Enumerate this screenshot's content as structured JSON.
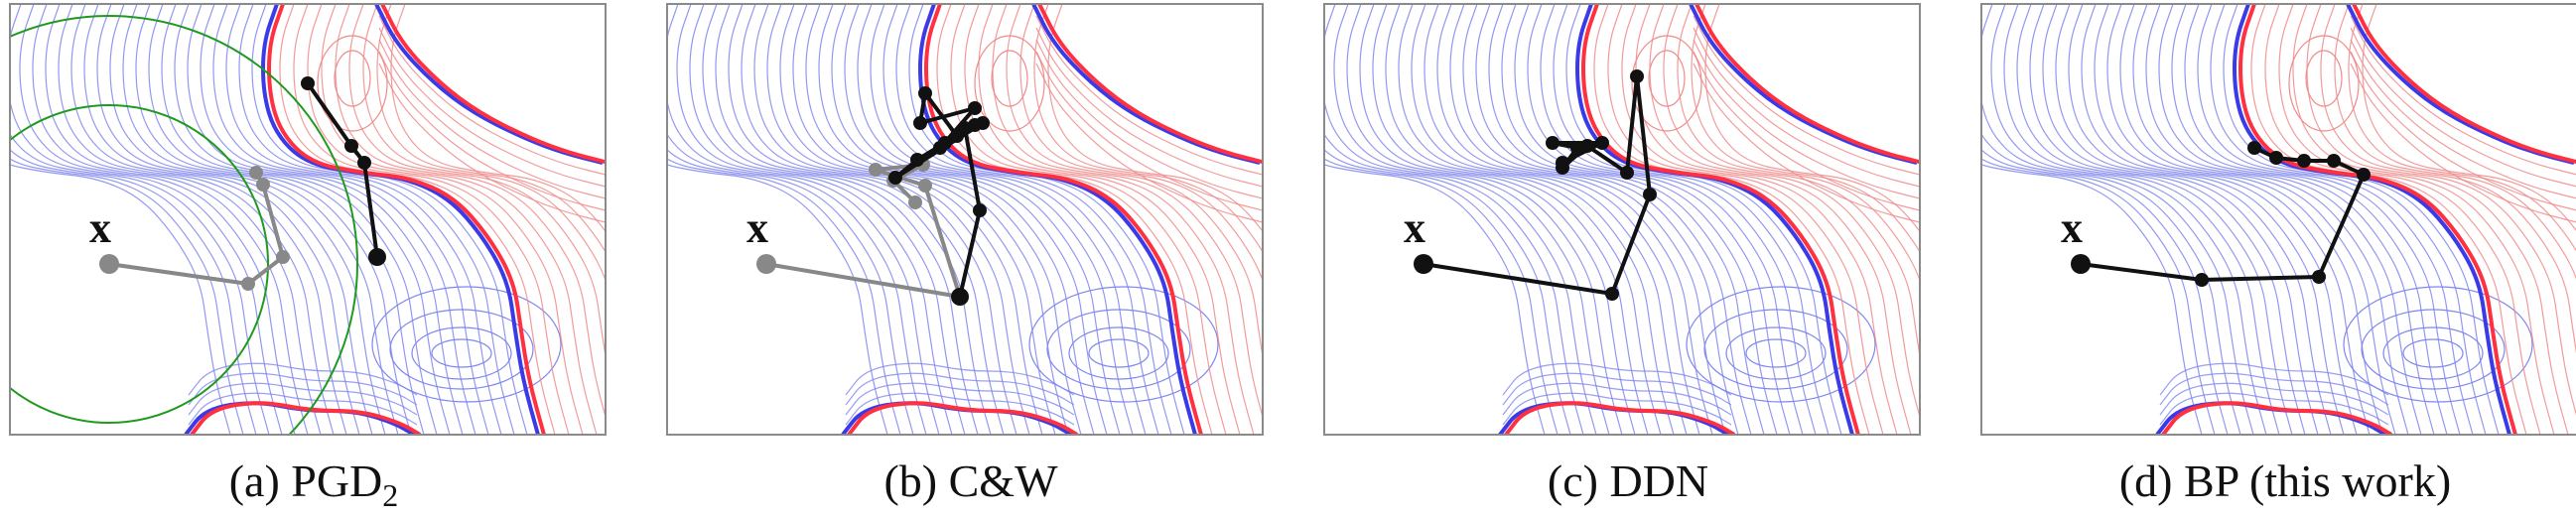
{
  "panels": [
    {
      "id": "a",
      "caption": "(a) PGD",
      "caption_sub": "2",
      "point_label": "x",
      "show_ball": true,
      "gray_path": [
        [
          100,
          262
        ],
        [
          240,
          282
        ],
        [
          275,
          255
        ],
        [
          255,
          182
        ],
        [
          248,
          170
        ]
      ],
      "black_path": [
        [
          370,
          255
        ],
        [
          357,
          160
        ],
        [
          344,
          143
        ],
        [
          300,
          80
        ]
      ]
    },
    {
      "id": "b",
      "caption": "(b) C&W",
      "caption_sub": "",
      "point_label": "x",
      "show_ball": false,
      "gray_path": [
        [
          100,
          262
        ],
        [
          295,
          295
        ],
        [
          260,
          183
        ],
        [
          210,
          167
        ],
        [
          258,
          162
        ],
        [
          228,
          178
        ],
        [
          250,
          200
        ]
      ],
      "black_path": [
        [
          295,
          295
        ],
        [
          315,
          208
        ],
        [
          300,
          125
        ],
        [
          275,
          145
        ],
        [
          310,
          105
        ],
        [
          255,
          120
        ],
        [
          260,
          90
        ],
        [
          292,
          133
        ],
        [
          318,
          120
        ],
        [
          230,
          175
        ],
        [
          252,
          157
        ],
        [
          280,
          140
        ],
        [
          310,
          122
        ]
      ]
    },
    {
      "id": "c",
      "caption": "(c) DDN",
      "caption_sub": "",
      "point_label": "x",
      "show_ball": false,
      "gray_path": [],
      "black_path": [
        [
          100,
          262
        ],
        [
          290,
          292
        ],
        [
          328,
          192
        ],
        [
          315,
          73
        ],
        [
          305,
          170
        ],
        [
          265,
          143
        ],
        [
          240,
          165
        ],
        [
          255,
          145
        ],
        [
          230,
          140
        ],
        [
          280,
          140
        ],
        [
          240,
          160
        ]
      ]
    },
    {
      "id": "d",
      "caption": "(d) BP (this work)",
      "caption_sub": "",
      "point_label": "x",
      "show_ball": false,
      "gray_path": [],
      "black_path": [
        [
          100,
          262
        ],
        [
          222,
          278
        ],
        [
          340,
          275
        ],
        [
          385,
          172
        ],
        [
          355,
          158
        ],
        [
          325,
          158
        ],
        [
          297,
          155
        ],
        [
          275,
          145
        ]
      ]
    }
  ],
  "colors": {
    "blue_contour": "#7f86f0",
    "red_contour": "#f08a8a",
    "boundary_red": "#ff3040",
    "boundary_blue": "#3a3ae8",
    "black_path": "#111111",
    "gray_path": "#888888",
    "ball": "#1f9a1f",
    "frame": "#8a8a8a"
  }
}
